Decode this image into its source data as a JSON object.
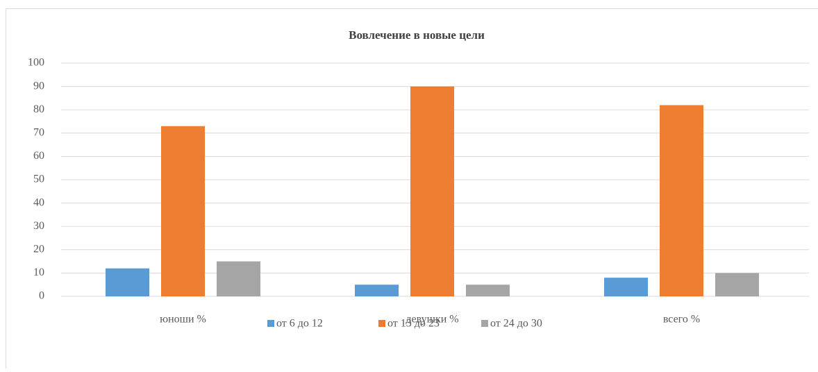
{
  "chart_data": {
    "type": "bar",
    "title": "Вовлечение в новые цели",
    "categories": [
      "юноши %",
      "девушки %",
      "всего %"
    ],
    "series": [
      {
        "name": "от 6 до 12",
        "color": "#5b9bd5",
        "values": [
          12,
          5,
          8
        ]
      },
      {
        "name": "от 13 до 23",
        "color": "#ed7d31",
        "values": [
          73,
          90,
          82
        ]
      },
      {
        "name": "от 24 до 30",
        "color": "#a5a5a5",
        "values": [
          15,
          5,
          10
        ]
      }
    ],
    "ylim": [
      0,
      100
    ],
    "yticks": [
      0,
      10,
      20,
      30,
      40,
      50,
      60,
      70,
      80,
      90,
      100
    ],
    "grid": true,
    "legend": "bottom"
  }
}
